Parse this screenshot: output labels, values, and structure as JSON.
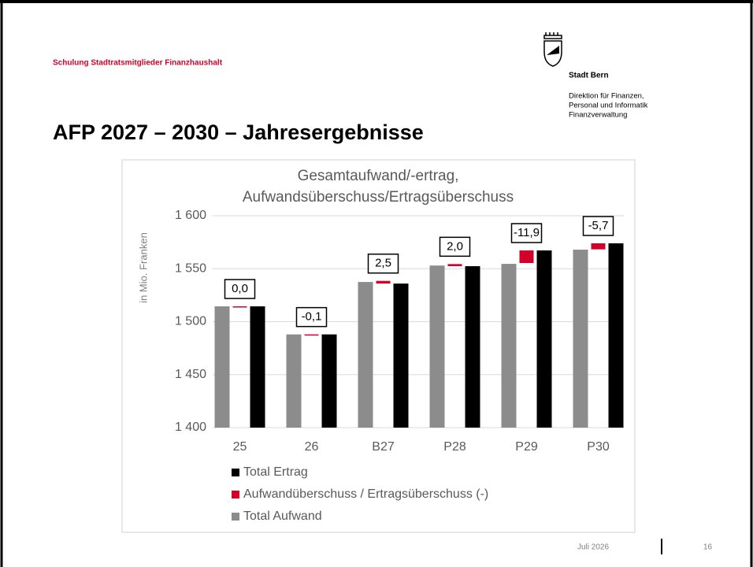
{
  "header": {
    "course": "Schulung Stadtratsmitglieder Finanzhaushalt",
    "org": "Stadt Bern",
    "department": [
      "Direktion für Finanzen,",
      "Personal und Informatik",
      "Finanzverwaltung"
    ],
    "title": "AFP 2027 – 2030 – Jahresergebnisse"
  },
  "footer": {
    "date": "Juli 2026",
    "page": "16"
  },
  "chart_data": {
    "type": "bar",
    "title": [
      "Gesamtaufwand/-ertrag,",
      "Aufwandsüberschuss/Ertragsüberschuss"
    ],
    "y_label": "in Mio. Franken",
    "categories": [
      "25",
      "26",
      "B27",
      "P28",
      "P29",
      "P30"
    ],
    "ylim": [
      1400,
      1600
    ],
    "yticks": [
      {
        "value": 1400,
        "label": "1 400"
      },
      {
        "value": 1450,
        "label": "1 450"
      },
      {
        "value": 1500,
        "label": "1 500"
      },
      {
        "value": 1550,
        "label": "1 550"
      },
      {
        "value": 1600,
        "label": "1 600"
      }
    ],
    "grid": true,
    "series": [
      {
        "name": "Total Ertrag",
        "color": "#000000",
        "values": [
          1514.5,
          1488,
          1536,
          1552.4,
          1567.3,
          1574
        ]
      },
      {
        "name": "Aufwandüberschuss / Ertragsüberschuss (-)",
        "color": "#d4002a",
        "values": [
          0.0,
          -0.1,
          2.5,
          2.0,
          -11.9,
          -5.7
        ],
        "value_labels": [
          "0,0",
          "-0,1",
          "2,5",
          "2,0",
          "-11,9",
          "-5,7"
        ]
      },
      {
        "name": "Total Aufwand",
        "color": "#8c8c8c",
        "values": [
          1514.5,
          1488,
          1537.5,
          1553,
          1554.6,
          1568
        ]
      }
    ]
  }
}
